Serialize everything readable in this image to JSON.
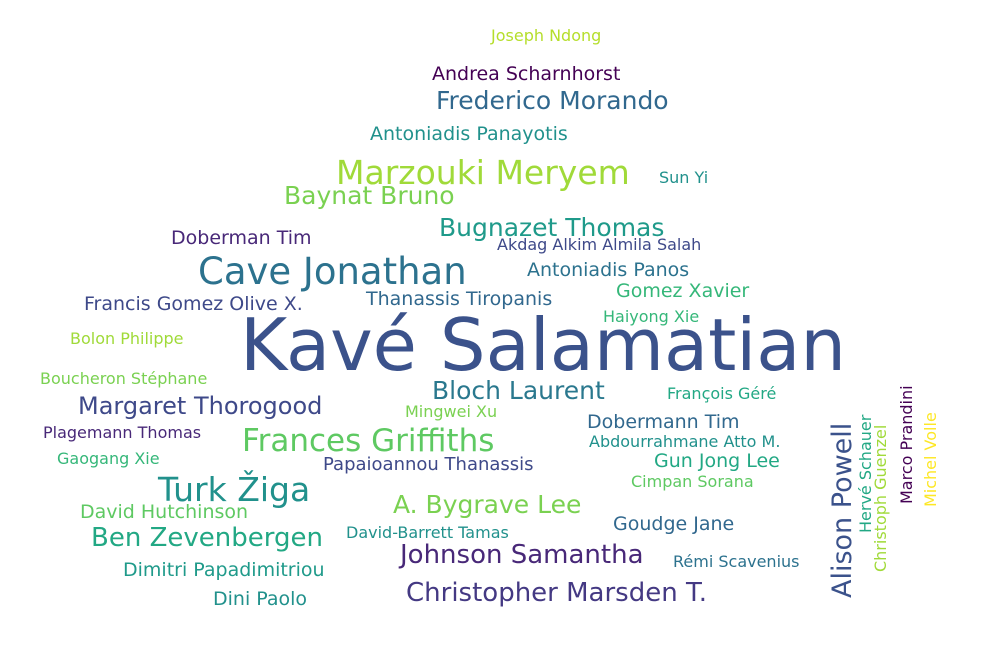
{
  "words": [
    {
      "text": "Kavé Salamatian",
      "color": "#3b528b"
    },
    {
      "text": "Cave Jonathan",
      "color": "#2c728e"
    },
    {
      "text": "Marzouki Meryem",
      "color": "#a0da39"
    },
    {
      "text": "Frances Griffiths",
      "color": "#5ec962"
    },
    {
      "text": "Turk Žiga",
      "color": "#21918c"
    },
    {
      "text": "Frederico Morando",
      "color": "#31688e"
    },
    {
      "text": "Christopher Marsden T.",
      "color": "#443983"
    },
    {
      "text": "Alison Powell",
      "color": "#3b528b"
    },
    {
      "text": "Johnson Samantha",
      "color": "#482878"
    },
    {
      "text": "Ben Zevenbergen",
      "color": "#22a884"
    },
    {
      "text": "Bugnazet Thomas",
      "color": "#1f9a8a"
    },
    {
      "text": "Baynat Bruno",
      "color": "#7ad151"
    },
    {
      "text": "Margaret Thorogood",
      "color": "#3e4989"
    },
    {
      "text": "Bloch Laurent",
      "color": "#2a788e"
    },
    {
      "text": "A. Bygrave Lee",
      "color": "#7ad151"
    },
    {
      "text": "Andrea Scharnhorst",
      "color": "#440154"
    },
    {
      "text": "Antoniadis Panayotis",
      "color": "#21918c"
    },
    {
      "text": "Doberman Tim",
      "color": "#482878"
    },
    {
      "text": "Antoniadis Panos",
      "color": "#2c728e"
    },
    {
      "text": "Francis Gomez Olive X.",
      "color": "#3e4989"
    },
    {
      "text": "Thanassis Tiropanis",
      "color": "#31688e"
    },
    {
      "text": "Gomez Xavier",
      "color": "#35b779"
    },
    {
      "text": "Akdag Alkim Almila Salah",
      "color": "#3e4989"
    },
    {
      "text": "Papaioannou Thanassis",
      "color": "#3e4989"
    },
    {
      "text": "Gun Jong Lee",
      "color": "#22a884"
    },
    {
      "text": "Dobermann Tim",
      "color": "#31688e"
    },
    {
      "text": "Goudge Jane",
      "color": "#31688e"
    },
    {
      "text": "David Hutchinson",
      "color": "#5ec962"
    },
    {
      "text": "Dimitri Papadimitriou",
      "color": "#1f9a8a"
    },
    {
      "text": "Dini Paolo",
      "color": "#21918c"
    },
    {
      "text": "Joseph Ndong",
      "color": "#b5de2b"
    },
    {
      "text": "Sun Yi",
      "color": "#21918c"
    },
    {
      "text": "Bolon Philippe",
      "color": "#a0da39"
    },
    {
      "text": "Haiyong Xie",
      "color": "#35b779"
    },
    {
      "text": "Boucheron Stéphane",
      "color": "#7ad151"
    },
    {
      "text": "François Géré",
      "color": "#22a884"
    },
    {
      "text": "Mingwei Xu",
      "color": "#7ad151"
    },
    {
      "text": "Plagemann Thomas",
      "color": "#482878"
    },
    {
      "text": "Abdourrahmane Atto M.",
      "color": "#21918c"
    },
    {
      "text": "Gaogang Xie",
      "color": "#35b779"
    },
    {
      "text": "Cimpan Sorana",
      "color": "#5ec962"
    },
    {
      "text": "David-Barrett Tamas",
      "color": "#21918c"
    },
    {
      "text": "Rémi Scavenius",
      "color": "#2c728e"
    },
    {
      "text": "Hervé Schauer",
      "color": "#22a884"
    },
    {
      "text": "Christoph Guenzel",
      "color": "#a0da39"
    },
    {
      "text": "Marco Prandini",
      "color": "#440154"
    },
    {
      "text": "Michel Volle",
      "color": "#fde725"
    }
  ]
}
